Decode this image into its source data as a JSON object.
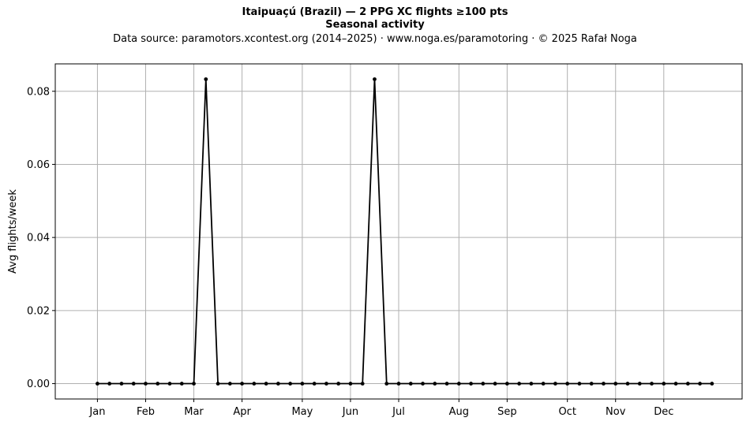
{
  "chart_data": {
    "type": "line",
    "title": "Itaipuaçú (Brazil)  —  2 PPG XC flights ≥100 pts",
    "subtitle": "Seasonal activity",
    "source": "Data source: paramotors.xcontest.org (2014–2025)  ·  www.noga.es/paramotoring  ·  © 2025 Rafał Noga",
    "xlabel": "",
    "ylabel": "Avg flights/week",
    "x_unit": "week of year",
    "xlim": [
      -2.5,
      54.5
    ],
    "ylim": [
      -0.0042,
      0.0875
    ],
    "grid": true,
    "line_color": "#000000",
    "grid_color": "#b0b0b0",
    "x_ticks": [
      {
        "x": 1,
        "label": "Jan"
      },
      {
        "x": 5,
        "label": "Feb"
      },
      {
        "x": 9,
        "label": "Mar"
      },
      {
        "x": 13,
        "label": "Apr"
      },
      {
        "x": 18,
        "label": "May"
      },
      {
        "x": 22,
        "label": "Jun"
      },
      {
        "x": 26,
        "label": "Jul"
      },
      {
        "x": 31,
        "label": "Aug"
      },
      {
        "x": 35,
        "label": "Sep"
      },
      {
        "x": 40,
        "label": "Oct"
      },
      {
        "x": 44,
        "label": "Nov"
      },
      {
        "x": 48,
        "label": "Dec"
      }
    ],
    "y_ticks": [
      {
        "y": 0.0,
        "label": "0.00"
      },
      {
        "y": 0.02,
        "label": "0.02"
      },
      {
        "y": 0.04,
        "label": "0.04"
      },
      {
        "y": 0.06,
        "label": "0.06"
      },
      {
        "y": 0.08,
        "label": "0.08"
      }
    ],
    "x": [
      1,
      2,
      3,
      4,
      5,
      6,
      7,
      8,
      9,
      10,
      11,
      12,
      13,
      14,
      15,
      16,
      17,
      18,
      19,
      20,
      21,
      22,
      23,
      24,
      25,
      26,
      27,
      28,
      29,
      30,
      31,
      32,
      33,
      34,
      35,
      36,
      37,
      38,
      39,
      40,
      41,
      42,
      43,
      44,
      45,
      46,
      47,
      48,
      49,
      50,
      51,
      52
    ],
    "values": [
      0,
      0,
      0,
      0,
      0,
      0,
      0,
      0,
      0,
      0.0833,
      0,
      0,
      0,
      0,
      0,
      0,
      0,
      0,
      0,
      0,
      0,
      0,
      0,
      0.0833,
      0,
      0,
      0,
      0,
      0,
      0,
      0,
      0,
      0,
      0,
      0,
      0,
      0,
      0,
      0,
      0,
      0,
      0,
      0,
      0,
      0,
      0,
      0,
      0,
      0,
      0,
      0,
      0
    ]
  }
}
